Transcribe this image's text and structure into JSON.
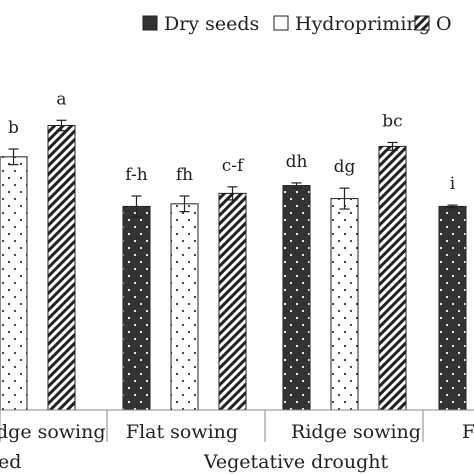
{
  "chart_data": {
    "type": "bar",
    "legend": {
      "placement": "top-right",
      "entries": [
        {
          "label": "Dry seeds",
          "pattern": "solid-dark"
        },
        {
          "label": "Hydropriming",
          "pattern": "dotted-white"
        },
        {
          "label": "O",
          "pattern": "diagonal-hatch"
        }
      ]
    },
    "series": [
      {
        "label": "Dry seeds",
        "values": [
          null,
          0.78,
          0.86,
          0.78
        ]
      },
      {
        "label": "Hydropriming",
        "values": [
          0.97,
          0.79,
          0.81,
          null
        ]
      },
      {
        "label": "O",
        "values": [
          1.09,
          0.83,
          1.01,
          null
        ]
      }
    ],
    "groups": [
      {
        "label": "dge sowing",
        "letters": [
          null,
          "b",
          "a"
        ]
      },
      {
        "label": "Flat sowing",
        "letters": [
          "f-h",
          "fh",
          "c-f"
        ]
      },
      {
        "label": "Ridge sowing",
        "letters": [
          "dh",
          "dg",
          "bc"
        ]
      },
      {
        "label": "F",
        "letters": [
          "i",
          null,
          null
        ]
      }
    ],
    "super_groups": [
      {
        "label": "ed"
      },
      {
        "label": "Vegetative drought"
      }
    ],
    "error_bars": [
      [
        null,
        0.03,
        0.02
      ],
      [
        0.04,
        0.03,
        0.025
      ],
      [
        0.01,
        0.04,
        0.015
      ],
      [
        0.005,
        null,
        null
      ]
    ],
    "y_range": [
      0,
      1.25
    ],
    "grid": false,
    "colors": {
      "dark": "#333333",
      "outline": "#222222",
      "axis": "#888888"
    }
  }
}
